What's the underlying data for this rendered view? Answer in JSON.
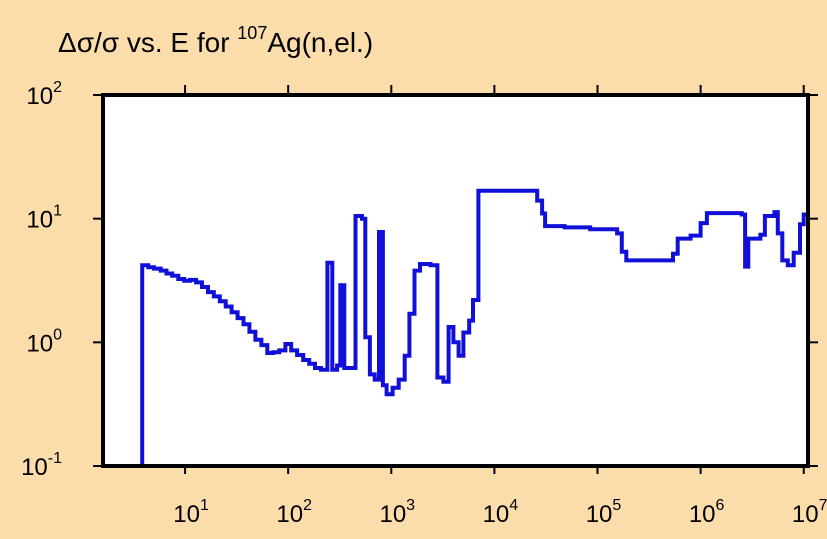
{
  "colors": {
    "background": "#FADDAA",
    "plot_area": "#FFFFFF",
    "series": "#1010D8",
    "frame": "#000000"
  },
  "chart_data": {
    "type": "line",
    "step": true,
    "title": {
      "prefix": "Δσ/σ vs. E for ",
      "sup": "107",
      "suffix": "Ag(n,el.)"
    },
    "xlabel": "",
    "ylabel": "",
    "x_scale": "log",
    "y_scale": "log",
    "xlim": [
      1.6,
      11000000
    ],
    "ylim": [
      0.1,
      100
    ],
    "x_ticks": [
      {
        "value": 10,
        "base": "10",
        "exp": "1"
      },
      {
        "value": 100,
        "base": "10",
        "exp": "2"
      },
      {
        "value": 1000,
        "base": "10",
        "exp": "3"
      },
      {
        "value": 10000,
        "base": "10",
        "exp": "4"
      },
      {
        "value": 100000,
        "base": "10",
        "exp": "5"
      },
      {
        "value": 1000000,
        "base": "10",
        "exp": "6"
      },
      {
        "value": 10000000,
        "base": "10",
        "exp": "7"
      }
    ],
    "y_ticks": [
      {
        "value": 0.1,
        "base": "10",
        "exp": "-1"
      },
      {
        "value": 1,
        "base": "10",
        "exp": "0"
      },
      {
        "value": 10,
        "base": "10",
        "exp": "1"
      },
      {
        "value": 100,
        "base": "10",
        "exp": "2"
      }
    ],
    "grid": false,
    "series": [
      {
        "points": [
          [
            3.84,
            0.1
          ],
          [
            3.84,
            4.2
          ],
          [
            4.4,
            4.05
          ],
          [
            5,
            3.95
          ],
          [
            5.8,
            3.8
          ],
          [
            6.6,
            3.6
          ],
          [
            7.5,
            3.45
          ],
          [
            8.6,
            3.25
          ],
          [
            9.8,
            3.15
          ],
          [
            11.2,
            3.2
          ],
          [
            12.8,
            3.05
          ],
          [
            14.6,
            2.8
          ],
          [
            16.7,
            2.55
          ],
          [
            19,
            2.35
          ],
          [
            21.7,
            2.15
          ],
          [
            24.8,
            1.95
          ],
          [
            28.3,
            1.75
          ],
          [
            32.3,
            1.57
          ],
          [
            36.9,
            1.4
          ],
          [
            42.1,
            1.22
          ],
          [
            48.1,
            1.05
          ],
          [
            55,
            0.95
          ],
          [
            62.8,
            0.82
          ],
          [
            71.6,
            0.83
          ],
          [
            81.8,
            0.86
          ],
          [
            94,
            0.97
          ],
          [
            107,
            0.86
          ],
          [
            122,
            0.79
          ],
          [
            140,
            0.72
          ],
          [
            160,
            0.67
          ],
          [
            182,
            0.62
          ],
          [
            208,
            0.6
          ],
          [
            240,
            4.4
          ],
          [
            268,
            0.6
          ],
          [
            298,
            0.65
          ],
          [
            320,
            2.9
          ],
          [
            350,
            0.62
          ],
          [
            400,
            0.62
          ],
          [
            450,
            10.5
          ],
          [
            520,
            10.0
          ],
          [
            560,
            1.1
          ],
          [
            620,
            0.55
          ],
          [
            690,
            0.5
          ],
          [
            760,
            7.8
          ],
          [
            830,
            0.45
          ],
          [
            900,
            0.38
          ],
          [
            1030,
            0.43
          ],
          [
            1180,
            0.5
          ],
          [
            1350,
            0.78
          ],
          [
            1500,
            1.7
          ],
          [
            1680,
            3.8
          ],
          [
            1900,
            4.3
          ],
          [
            2400,
            4.2
          ],
          [
            2800,
            0.52
          ],
          [
            3200,
            0.48
          ],
          [
            3600,
            1.33
          ],
          [
            4000,
            1.0
          ],
          [
            4500,
            0.78
          ],
          [
            5000,
            1.2
          ],
          [
            5700,
            1.5
          ],
          [
            6200,
            2.2
          ],
          [
            7000,
            16.8
          ],
          [
            26000,
            14
          ],
          [
            29000,
            11
          ],
          [
            31000,
            8.7
          ],
          [
            48000,
            8.5
          ],
          [
            85000,
            8.2
          ],
          [
            155000,
            7.6
          ],
          [
            172000,
            5.4
          ],
          [
            190000,
            4.6
          ],
          [
            540000,
            5.2
          ],
          [
            600000,
            6.9
          ],
          [
            800000,
            7.3
          ],
          [
            1000000,
            9.2
          ],
          [
            1150000,
            11.1
          ],
          [
            2500000,
            10.8
          ],
          [
            2700000,
            4.1
          ],
          [
            2900000,
            6.9
          ],
          [
            3800000,
            7.4
          ],
          [
            4200000,
            10.5
          ],
          [
            5200000,
            11.3
          ],
          [
            5600000,
            7.6
          ],
          [
            6200000,
            4.6
          ],
          [
            7000000,
            4.2
          ],
          [
            8000000,
            5.3
          ],
          [
            9200000,
            9.0
          ],
          [
            10000000,
            10.8
          ],
          [
            11000000,
            0.1
          ]
        ]
      }
    ]
  }
}
